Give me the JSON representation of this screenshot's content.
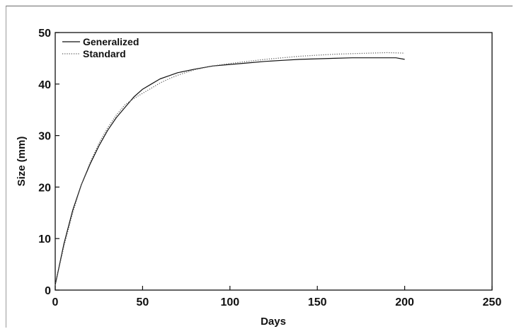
{
  "chart_data": {
    "type": "line",
    "title": "",
    "xlabel": "Days",
    "ylabel": "Size (mm)",
    "xlim": [
      0,
      250
    ],
    "ylim": [
      0,
      50
    ],
    "xticks": [
      0,
      50,
      100,
      150,
      200,
      250
    ],
    "yticks": [
      0,
      10,
      20,
      30,
      40,
      50
    ],
    "grid": false,
    "legend_position": "top-left",
    "series": [
      {
        "name": "Generalized",
        "style": "solid",
        "color": "#111111",
        "x": [
          0,
          5,
          10,
          15,
          20,
          25,
          30,
          35,
          40,
          45,
          50,
          55,
          60,
          65,
          70,
          80,
          90,
          100,
          110,
          120,
          130,
          140,
          150,
          160,
          170,
          180,
          190,
          195,
          200
        ],
        "y": [
          1.0,
          9.0,
          15.5,
          20.5,
          24.5,
          28.0,
          31.0,
          33.5,
          35.5,
          37.5,
          39.0,
          40.0,
          41.0,
          41.6,
          42.2,
          42.9,
          43.5,
          43.8,
          44.1,
          44.4,
          44.6,
          44.8,
          44.9,
          45.0,
          45.1,
          45.1,
          45.1,
          45.1,
          44.8
        ]
      },
      {
        "name": "Standard",
        "style": "dotted",
        "color": "#555555",
        "x": [
          0,
          5,
          10,
          15,
          20,
          25,
          30,
          35,
          40,
          45,
          50,
          55,
          60,
          65,
          70,
          80,
          90,
          100,
          110,
          120,
          130,
          140,
          150,
          160,
          170,
          180,
          190,
          200
        ],
        "y": [
          1.0,
          8.5,
          15.0,
          20.5,
          24.8,
          28.5,
          31.5,
          34.0,
          36.0,
          37.2,
          38.2,
          39.2,
          40.2,
          41.0,
          41.7,
          42.8,
          43.5,
          44.0,
          44.4,
          44.8,
          45.1,
          45.4,
          45.6,
          45.8,
          45.9,
          46.0,
          46.1,
          46.0
        ]
      }
    ]
  }
}
